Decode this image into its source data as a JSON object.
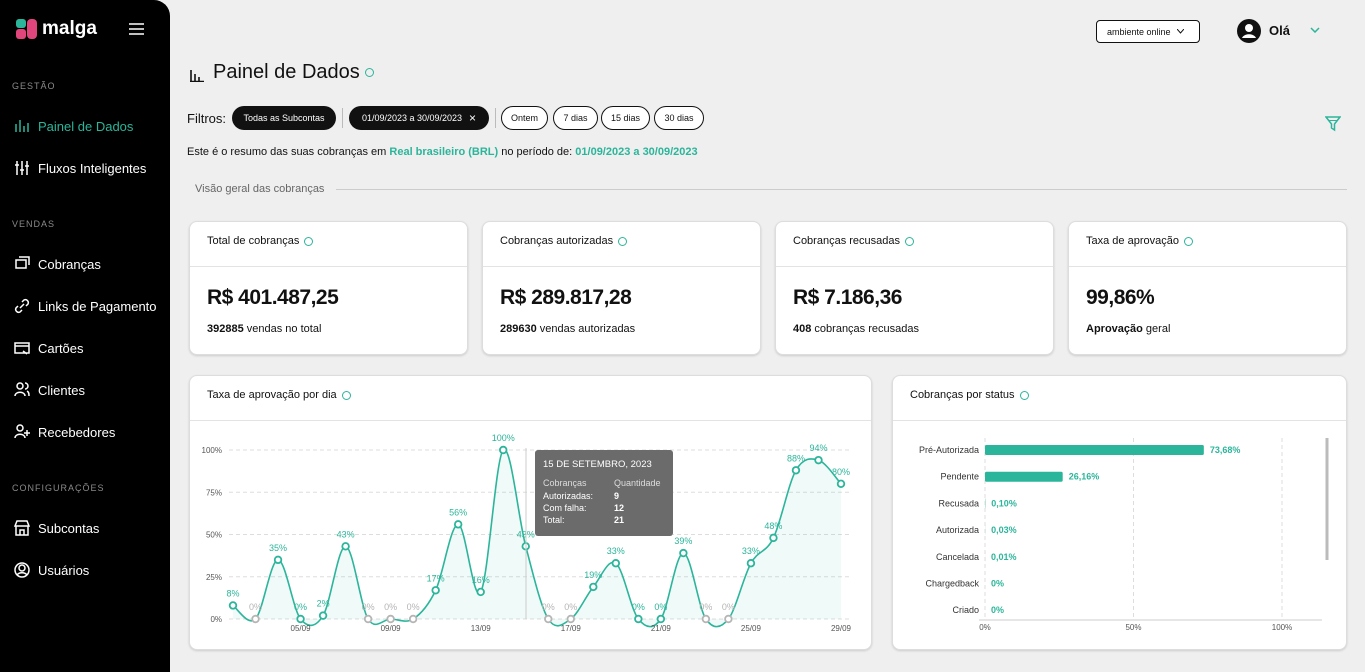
{
  "sidebar": {
    "brand": "malga",
    "sections": [
      {
        "title": "GESTÃO",
        "items": [
          "Painel de Dados",
          "Fluxos Inteligentes"
        ]
      },
      {
        "title": "VENDAS",
        "items": [
          "Cobranças",
          "Links de Pagamento",
          "Cartões",
          "Clientes",
          "Recebedores"
        ]
      },
      {
        "title": "CONFIGURAÇÕES",
        "items": [
          "Subcontas",
          "Usuários"
        ]
      }
    ]
  },
  "header": {
    "environment": "ambiente online",
    "greeting": "Olá"
  },
  "page_title": "Painel de Dados",
  "filters": {
    "label": "Filtros:",
    "active": [
      "Todas as Subcontas",
      "01/09/2023 a 30/09/2023"
    ],
    "quick": [
      "Ontem",
      "7 dias",
      "15 dias",
      "30 dias"
    ]
  },
  "summary": {
    "prefix": "Este é o resumo das suas cobranças em",
    "currency": "Real brasileiro (BRL)",
    "middle": "no período de:",
    "period": "01/09/2023 a 30/09/2023"
  },
  "section_title": "Visão geral das cobranças",
  "cards": [
    {
      "title": "Total de cobranças",
      "value": "R$ 401.487,25",
      "count": "392885",
      "caption": "vendas no total"
    },
    {
      "title": "Cobranças autorizadas",
      "value": "R$ 289.817,28",
      "count": "289630",
      "caption": "vendas autorizadas"
    },
    {
      "title": "Cobranças recusadas",
      "value": "R$ 7.186,36",
      "count": "408",
      "caption": "cobranças recusadas"
    },
    {
      "title": "Taxa de aprovação",
      "value": "99,86%",
      "count": "Aprovação",
      "caption": "geral"
    }
  ],
  "charts": [
    {
      "type": "line",
      "title": "Taxa de aprovação por dia",
      "color": "#2bb59a",
      "grid": true,
      "categories": [
        null,
        null,
        null,
        "05/09",
        null,
        null,
        null,
        "09/09",
        null,
        null,
        null,
        "13/09",
        null,
        null,
        null,
        "17/09",
        null,
        null,
        null,
        "21/09",
        null,
        null,
        null,
        "25/09",
        null,
        null,
        null,
        "29/09"
      ],
      "values": [
        8,
        0,
        35,
        0,
        2,
        43,
        0,
        0,
        0,
        17,
        56,
        16,
        100,
        43,
        0,
        0,
        19,
        33,
        0,
        0,
        39,
        0,
        0,
        33,
        48,
        88,
        94,
        80
      ],
      "value_labels": [
        "8%",
        "0%",
        "35%",
        "0%",
        "2%",
        "43%",
        "0%",
        "0%",
        "0%",
        "17%",
        "56%",
        "16%",
        "100%",
        "43%",
        "0%",
        "0%",
        "19%",
        "33%",
        "0%",
        "0%",
        "39%",
        "0%",
        "0%",
        "33%",
        "48%",
        "88%",
        "94%",
        "80%"
      ],
      "point_colors": [
        "#2bb59a",
        "#b5b5b5",
        "#2bb59a",
        "#2bb59a",
        "#2bb59a",
        "#2bb59a",
        "#b5b5b5",
        "#b5b5b5",
        "#b5b5b5",
        "#2bb59a",
        "#2bb59a",
        "#2bb59a",
        "#2bb59a",
        "#2bb59a",
        "#b5b5b5",
        "#b5b5b5",
        "#2bb59a",
        "#2bb59a",
        "#2bb59a",
        "#2bb59a",
        "#2bb59a",
        "#b5b5b5",
        "#b5b5b5",
        "#2bb59a",
        "#2bb59a",
        "#2bb59a",
        "#2bb59a",
        "#2bb59a"
      ],
      "ylim": [
        0,
        100
      ],
      "yticks": [
        {
          "value": 0,
          "label": "0%"
        },
        {
          "value": 25,
          "label": "25%"
        },
        {
          "value": 50,
          "label": "50%"
        },
        {
          "value": 75,
          "label": "75%"
        },
        {
          "value": 100,
          "label": "100%"
        }
      ],
      "tooltip": {
        "title": "15 DE SETEMBRO, 2023",
        "headers": [
          "Cobranças",
          "Quantidade"
        ],
        "rows": [
          [
            "Autorizadas:",
            "9"
          ],
          [
            "Com falha:",
            "12"
          ],
          [
            "Total:",
            "21"
          ]
        ]
      }
    },
    {
      "type": "hbar",
      "title": "Cobranças por status",
      "color": "#2bb59a",
      "grid": true,
      "categories": [
        "Pré-Autorizada",
        "Pendente",
        "Recusada",
        "Autorizada",
        "Cancelada",
        "Chargedback",
        "Criado"
      ],
      "values": [
        73.68,
        26.16,
        0.1,
        0.03,
        0.01,
        0,
        0
      ],
      "value_labels": [
        "73,68%",
        "26,16%",
        "0,10%",
        "0,03%",
        "0,01%",
        "0%",
        "0%"
      ],
      "xlim": [
        0,
        100
      ],
      "xticks": [
        {
          "value": 0,
          "label": "0%"
        },
        {
          "value": 50,
          "label": "50%"
        },
        {
          "value": 100,
          "label": "100%"
        }
      ]
    }
  ]
}
